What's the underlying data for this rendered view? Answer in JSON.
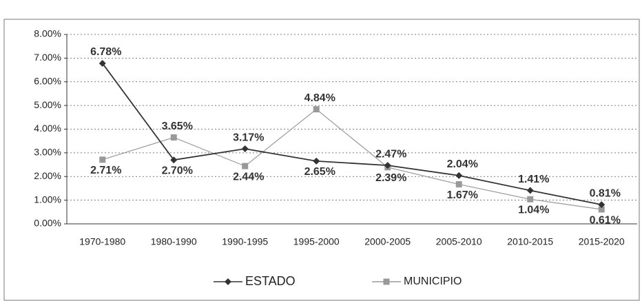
{
  "chart_data": {
    "type": "line",
    "categories": [
      "1970-1980",
      "1980-1990",
      "1990-1995",
      "1995-2000",
      "2000-2005",
      "2005-2010",
      "2010-2015",
      "2015-2020"
    ],
    "series": [
      {
        "name": "ESTADO",
        "color": "#333333",
        "marker": "diamond",
        "values": [
          6.78,
          2.7,
          3.17,
          2.65,
          2.47,
          2.04,
          1.41,
          0.81
        ],
        "value_labels": [
          "6.78%",
          "2.70%",
          "3.17%",
          "2.65%",
          "2.47%",
          "2.04%",
          "1.41%",
          "0.81%"
        ]
      },
      {
        "name": "MUNICIPIO",
        "color": "#999999",
        "marker": "square",
        "values": [
          2.71,
          3.65,
          2.44,
          4.84,
          2.39,
          1.67,
          1.04,
          0.61
        ],
        "value_labels": [
          "2.71%",
          "3.65%",
          "2.44%",
          "4.84%",
          "2.39%",
          "1.67%",
          "1.04%",
          "0.61%"
        ]
      }
    ],
    "ylim": [
      0,
      8
    ],
    "yticks": [
      {
        "value": 0,
        "label": "0.00%"
      },
      {
        "value": 1,
        "label": "1.00%"
      },
      {
        "value": 2,
        "label": "2.00%"
      },
      {
        "value": 3,
        "label": "3.00%"
      },
      {
        "value": 4,
        "label": "4.00%"
      },
      {
        "value": 5,
        "label": "5.00%"
      },
      {
        "value": 6,
        "label": "6.00%"
      },
      {
        "value": 7,
        "label": "7.00%"
      },
      {
        "value": 8,
        "label": "8.00%"
      }
    ],
    "grid": true,
    "legend": "bottom"
  }
}
